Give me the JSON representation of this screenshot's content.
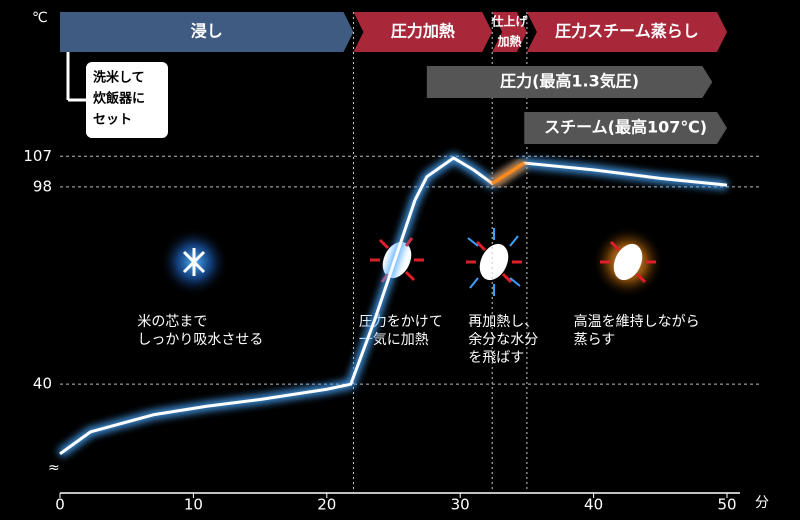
{
  "chart_data": {
    "type": "line",
    "x_unit": "分",
    "y_unit": "℃",
    "xlim": [
      0,
      53
    ],
    "ylim": [
      8,
      150
    ],
    "xticks": [
      0,
      10,
      20,
      30,
      40,
      50
    ],
    "yticks": [
      40,
      98,
      107
    ],
    "grid": true,
    "series": [
      {
        "color": "#ffffff",
        "x": [
          0,
          2.3,
          7,
          11,
          15,
          20,
          21.8,
          23.6,
          26.6,
          27.5,
          29.5,
          31,
          32.4,
          34.8,
          40,
          45,
          50
        ],
        "values": [
          19.5,
          26,
          31,
          33.5,
          35.5,
          38.5,
          40,
          59,
          94,
          101,
          106.5,
          103,
          99,
          105,
          103,
          100.5,
          98.5
        ]
      },
      {
        "color": "#ff8a1c",
        "x": [
          32.4,
          33.6,
          34.8
        ],
        "values": [
          99,
          102,
          105
        ]
      }
    ],
    "phases": [
      {
        "label": "浸し",
        "start": 0,
        "end": 22,
        "color": "#3f5b82"
      },
      {
        "label": "圧力加熱",
        "start": 22,
        "end": 32.4,
        "color": "#a8283a"
      },
      {
        "label": [
          "仕上げ",
          "加熱"
        ],
        "start": 32.4,
        "end": 35,
        "color": "#a8283a"
      },
      {
        "label": "圧力スチーム蒸らし",
        "start": 35,
        "end": 50,
        "color": "#a8283a"
      }
    ],
    "bands": [
      {
        "label": "圧力(最高1.3気圧)",
        "start": 27.5,
        "end": 48.9
      },
      {
        "label": "スチーム(最高107℃)",
        "start": 34.8,
        "end": 50
      }
    ],
    "setup_note": [
      "洗米して",
      "炊飯器に",
      "セット"
    ],
    "annotations": [
      {
        "lines": [
          "米の芯まで",
          "しっかり吸水させる"
        ],
        "x": 5.8
      },
      {
        "lines": [
          "圧力をかけて",
          "一気に加熱"
        ],
        "x": 22.4
      },
      {
        "lines": [
          "再加熱し、",
          "余分な水分",
          "を飛ばす"
        ],
        "x": 30.6
      },
      {
        "lines": [
          "高温を維持しながら",
          "蒸らす"
        ],
        "x": 38.5
      }
    ]
  }
}
